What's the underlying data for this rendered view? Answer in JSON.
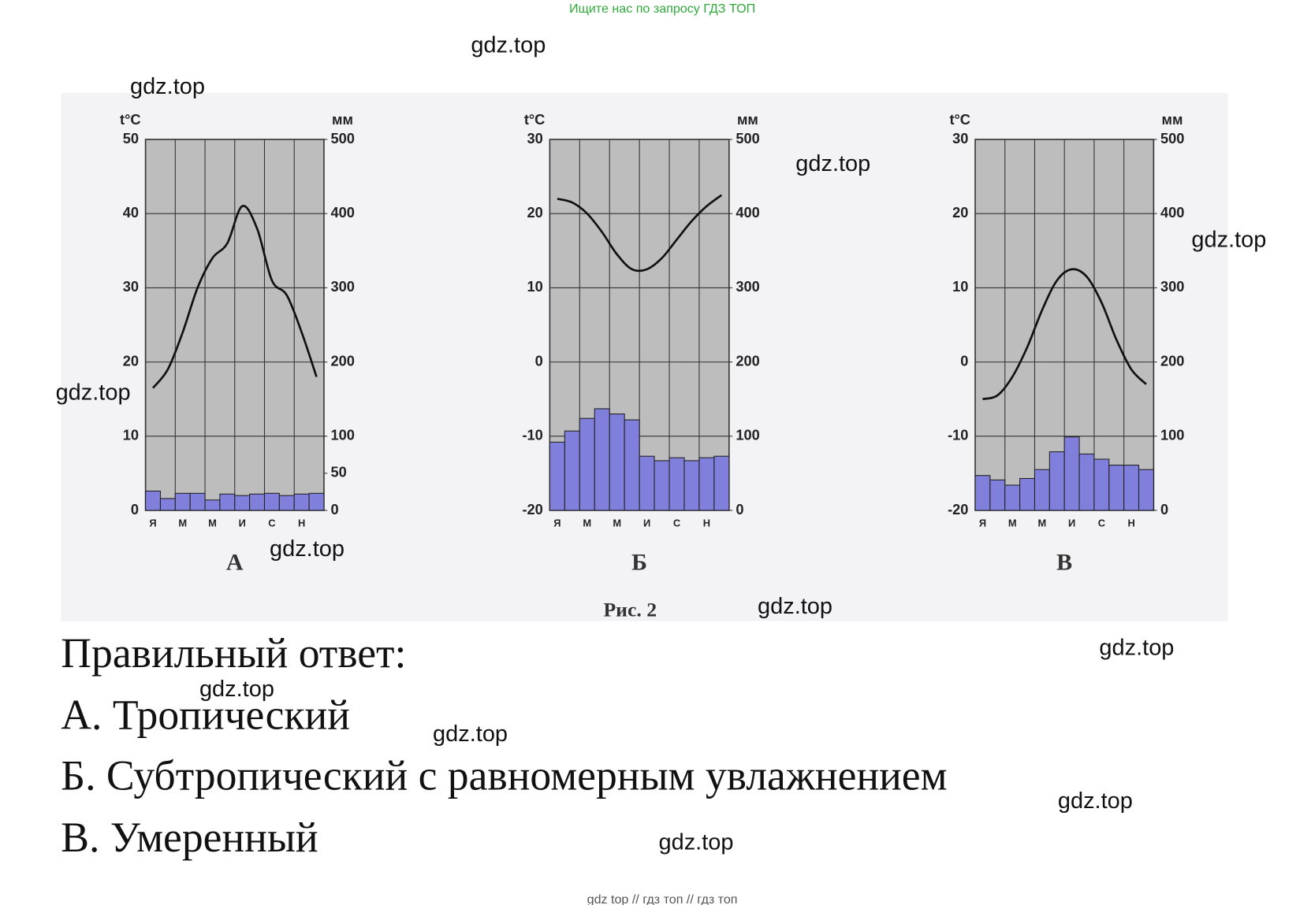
{
  "header_text": "Ищите нас по запросу ГДЗ ТОП",
  "watermarks": [
    "gdz.top",
    "gdz.top",
    "gdz.top",
    "gdz.top",
    "gdz.top",
    "gdz.top",
    "gdz.top",
    "gdz.top",
    "gdz.top",
    "gdz.top",
    "gdz.top",
    "gdz.top"
  ],
  "chart_data": [
    {
      "type": "bar",
      "title": "А",
      "ylabel": "t°C",
      "y2label": "мм",
      "categories": [
        "Я",
        null,
        "М",
        null,
        "М",
        null,
        "И",
        null,
        "С",
        null,
        "Н",
        null
      ],
      "ylim": [
        0,
        50
      ],
      "yticks": [
        0,
        10,
        20,
        30,
        40,
        50
      ],
      "y2lim": [
        0,
        500
      ],
      "y2ticks": [
        0,
        50,
        100,
        200,
        300,
        400,
        500
      ],
      "grid": true,
      "series": [
        {
          "type": "line",
          "color": "#111111",
          "values": [
            16.5,
            19,
            24,
            30,
            34,
            36,
            41,
            38,
            31,
            29,
            24,
            18
          ]
        },
        {
          "type": "bar",
          "axis": "y2",
          "color": "#8080dc",
          "values": [
            26,
            16,
            23,
            23,
            14,
            22,
            20,
            22,
            23,
            20,
            22,
            23
          ]
        }
      ]
    },
    {
      "type": "bar",
      "title": "Б",
      "ylabel": "t°C",
      "y2label": "мм",
      "categories": [
        "Я",
        null,
        "М",
        null,
        "М",
        null,
        "И",
        null,
        "С",
        null,
        "Н",
        null
      ],
      "ylim": [
        -20,
        30
      ],
      "yticks": [
        -20,
        -10,
        0,
        10,
        20,
        30
      ],
      "y2lim": [
        0,
        500
      ],
      "y2ticks": [
        0,
        100,
        200,
        300,
        400,
        500
      ],
      "grid": true,
      "series": [
        {
          "type": "line",
          "color": "#111111",
          "values": [
            22,
            21.5,
            20,
            17.5,
            14.5,
            12.5,
            12.5,
            14,
            16.5,
            19,
            21,
            22.5
          ]
        },
        {
          "type": "bar",
          "axis": "y2",
          "color": "#8080dc",
          "values": [
            92,
            107,
            124,
            137,
            130,
            122,
            73,
            67,
            71,
            67,
            71,
            73
          ]
        }
      ]
    },
    {
      "type": "bar",
      "title": "В",
      "ylabel": "t°C",
      "y2label": "мм",
      "categories": [
        "Я",
        null,
        "М",
        null,
        "М",
        null,
        "И",
        null,
        "С",
        null,
        "Н",
        null
      ],
      "ylim": [
        -20,
        30
      ],
      "yticks": [
        -20,
        -10,
        0,
        10,
        20,
        30
      ],
      "y2lim": [
        0,
        500
      ],
      "y2ticks": [
        0,
        100,
        200,
        300,
        400,
        500
      ],
      "grid": true,
      "series": [
        {
          "type": "line",
          "color": "#111111",
          "values": [
            -5,
            -4.5,
            -2,
            2,
            7,
            11,
            12.5,
            11.5,
            8,
            3,
            -1,
            -3
          ]
        },
        {
          "type": "bar",
          "axis": "y2",
          "color": "#8080dc",
          "values": [
            47,
            41,
            34,
            43,
            55,
            79,
            99,
            76,
            69,
            61,
            61,
            55
          ]
        }
      ]
    }
  ],
  "figure_caption": "Рис. 2",
  "answer": {
    "title": "Правильный ответ:",
    "lines": [
      "А. Тропический",
      "Б. Субтропический с равномерным увлажнением",
      "В. Умеренный"
    ]
  },
  "footer": "gdz top  //  гдз топ  //  гдз топ"
}
